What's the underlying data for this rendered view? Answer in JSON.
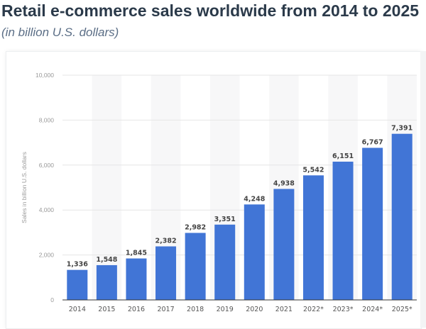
{
  "chart_data": {
    "type": "bar",
    "title": "Retail e-commerce sales worldwide from 2014 to 2025",
    "subtitle": "(in billion U.S. dollars)",
    "xlabel": "",
    "ylabel": "Sales in billion U.S. dollars",
    "categories": [
      "2014",
      "2015",
      "2016",
      "2017",
      "2018",
      "2019",
      "2020",
      "2021",
      "2022*",
      "2023*",
      "2024*",
      "2025*"
    ],
    "values": [
      1336,
      1548,
      1845,
      2382,
      2982,
      3351,
      4248,
      4938,
      5542,
      6151,
      6767,
      7391
    ],
    "value_labels": [
      "1,336",
      "1,548",
      "1,845",
      "2,382",
      "2,982",
      "3,351",
      "4,248",
      "4,938",
      "5,542",
      "6,151",
      "6,767",
      "7,391"
    ],
    "ylim": [
      0,
      10000
    ],
    "yticks": [
      0,
      2000,
      4000,
      6000,
      8000,
      10000
    ],
    "ytick_labels": [
      "0",
      "2,000",
      "4,000",
      "6,000",
      "8,000",
      "10,000"
    ],
    "grid": true,
    "legend": "none",
    "colors": {
      "bar": "#4175d6",
      "band": "#f7f7f8",
      "grid": "#e6e6e6"
    }
  }
}
